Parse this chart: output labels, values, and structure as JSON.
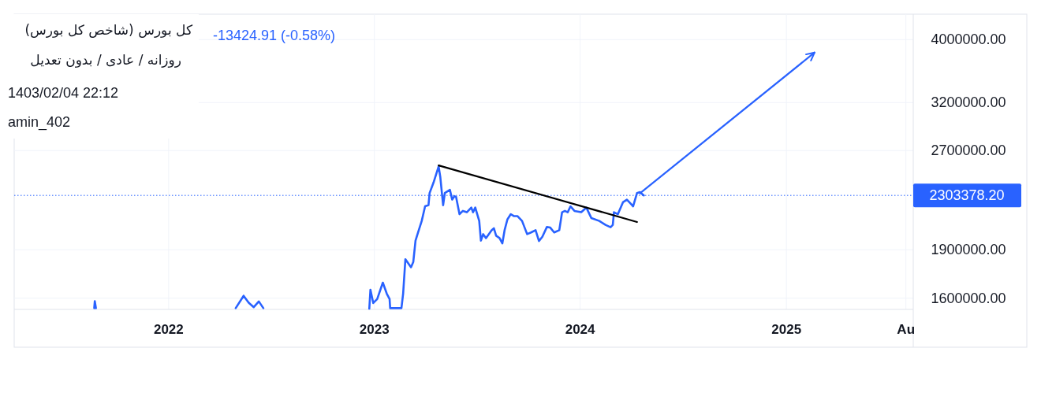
{
  "chart_data": {
    "type": "line",
    "title": "کل بورس (شاخص کل بورس)",
    "subtitle": "روزانه / عادی / بدون تعدیل",
    "annotations": [
      "-13424.91 (-0.58%)",
      "1403/02/04 22:12",
      "amin_402"
    ],
    "log": true,
    "grid": true,
    "xlim": [
      "2021-04-02",
      "2025-08-14"
    ],
    "xticks": [
      "2022",
      "2023",
      "2024",
      "2025",
      {
        "value": "2025-08",
        "label": "Au"
      }
    ],
    "ylim": [
      1538000,
      4377000
    ],
    "yticks": [
      {
        "value": 1600000,
        "label": "1600000.00"
      },
      {
        "value": 1900000,
        "label": "1900000.00"
      },
      {
        "value": 2700000,
        "label": "2700000.00"
      },
      {
        "value": 3200000,
        "label": "3200000.00"
      },
      {
        "value": 4000000,
        "label": "4000000.00"
      }
    ],
    "ref_lines": [
      {
        "axis": "y",
        "value": 2303378.2,
        "label": "2303378.20",
        "color": "#2962ff",
        "line_style": "dotted"
      }
    ],
    "series": [
      {
        "color": "#2962ff",
        "x": [
          "2021-08-22",
          "2021-08-23",
          "2021-08-25",
          "2021-08-26",
          "2022-04-30",
          "2022-05-14",
          "2022-05-23",
          "2022-06-01",
          "2022-06-10",
          "2022-06-18",
          "2022-06-19",
          "2022-12-23",
          "2022-12-25",
          "2022-12-30",
          "2023-01-06",
          "2023-01-16",
          "2023-01-23",
          "2023-01-28",
          "2023-01-29",
          "2023-02-08",
          "2023-02-18",
          "2023-02-21",
          "2023-02-25",
          "2023-03-07",
          "2023-03-11",
          "2023-03-15",
          "2023-03-20",
          "2023-03-26",
          "2023-04-01",
          "2023-04-07",
          "2023-04-09",
          "2023-04-16",
          "2023-04-25",
          "2023-04-28",
          "2023-05-01",
          "2023-05-03",
          "2023-05-06",
          "2023-05-15",
          "2023-05-19",
          "2023-05-23",
          "2023-05-26",
          "2023-06-01",
          "2023-06-07",
          "2023-06-14",
          "2023-06-22",
          "2023-06-25",
          "2023-06-29",
          "2023-07-06",
          "2023-07-09",
          "2023-07-13",
          "2023-07-18",
          "2023-07-23",
          "2023-07-28",
          "2023-08-01",
          "2023-08-05",
          "2023-08-11",
          "2023-08-16",
          "2023-08-20",
          "2023-08-25",
          "2023-08-31",
          "2023-09-06",
          "2023-09-12",
          "2023-09-20",
          "2023-09-29",
          "2023-10-06",
          "2023-10-14",
          "2023-10-20",
          "2023-10-26",
          "2023-11-03",
          "2023-11-09",
          "2023-11-16",
          "2023-11-25",
          "2023-11-30",
          "2023-12-05",
          "2023-12-10",
          "2023-12-15",
          "2023-12-22",
          "2024-01-03",
          "2024-01-12",
          "2024-01-21",
          "2024-02-04",
          "2024-02-15",
          "2024-02-24",
          "2024-02-28",
          "2024-03-01",
          "2024-03-08",
          "2024-03-17",
          "2024-03-24",
          "2024-03-31",
          "2024-04-04",
          "2024-04-11",
          "2024-04-16",
          "2024-04-23"
        ],
        "values": [
          1545000,
          1583000,
          1545000,
          null,
          1545000,
          1614000,
          1575000,
          1550000,
          1582000,
          1545000,
          null,
          1542000,
          1649000,
          1573000,
          1595000,
          1691000,
          1626000,
          1595000,
          1545000,
          1545000,
          1545000,
          1626000,
          1837000,
          1786000,
          1819000,
          1962000,
          2027000,
          2104000,
          2216000,
          2225000,
          2323000,
          2411000,
          2552000,
          2457000,
          2312000,
          2225000,
          2323000,
          2349000,
          2269000,
          2297000,
          2290000,
          2155000,
          2180000,
          2170000,
          2206000,
          2170000,
          2206000,
          2104000,
          1962000,
          2008000,
          1980000,
          2008000,
          2036000,
          2050000,
          1997000,
          1980000,
          1943000,
          2036000,
          2115000,
          2155000,
          2140000,
          2140000,
          2104000,
          2008000,
          2020000,
          2036000,
          1960000,
          1989000,
          2059000,
          2055000,
          2020000,
          2036000,
          2170000,
          2180000,
          2170000,
          2216000,
          2180000,
          2170000,
          2206000,
          2125000,
          2104000,
          2075000,
          2058000,
          2075000,
          2170000,
          2155000,
          2248000,
          2269000,
          2236000,
          2216000,
          2323000,
          2330000,
          2303378.2
        ]
      },
      {
        "type": "line",
        "color": "#000000",
        "x": [
          "2023-04-25",
          "2024-04-11"
        ],
        "values": [
          2561000,
          2096000
        ]
      },
      {
        "type": "line",
        "color": "#2962ff",
        "x": [
          "2024-04-16",
          "2025-02-20"
        ],
        "values": [
          2320000,
          3821000
        ]
      }
    ]
  }
}
